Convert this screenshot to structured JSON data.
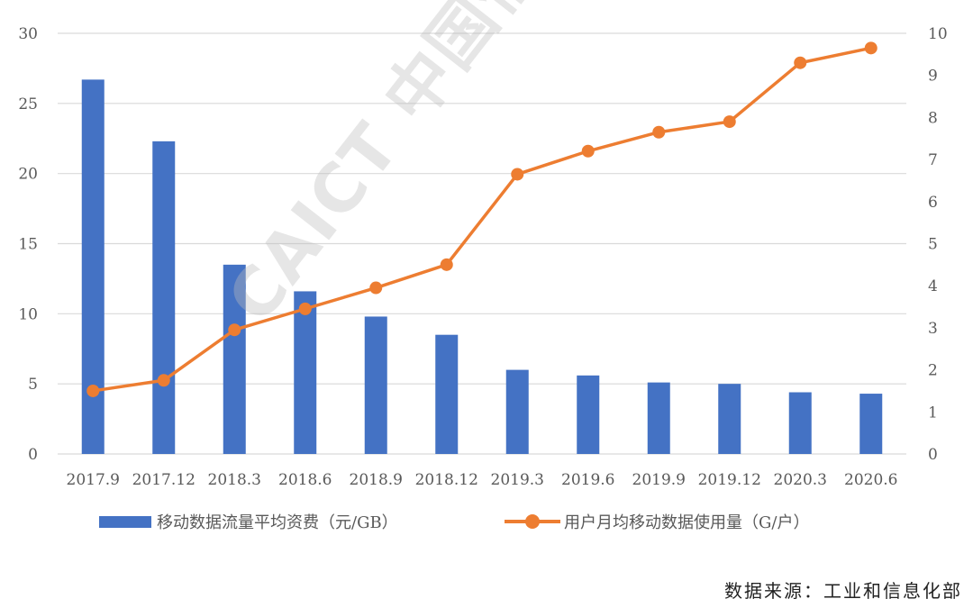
{
  "chart_data": {
    "type": "bar",
    "categories": [
      "2017.9",
      "2017.12",
      "2018.3",
      "2018.6",
      "2018.9",
      "2018.12",
      "2019.3",
      "2019.6",
      "2019.9",
      "2019.12",
      "2020.3",
      "2020.6"
    ],
    "series": [
      {
        "name": "移动数据流量平均资费（元/GB）",
        "type": "bar",
        "axis": "left",
        "values": [
          26.7,
          22.3,
          13.5,
          11.6,
          9.8,
          8.5,
          6.0,
          5.6,
          5.1,
          5.0,
          4.4,
          4.3
        ]
      },
      {
        "name": "用户月均移动数据使用量（G/户）",
        "type": "line",
        "axis": "right",
        "values": [
          1.5,
          1.75,
          2.95,
          3.45,
          3.95,
          4.5,
          6.65,
          7.2,
          7.65,
          7.9,
          9.3,
          9.65
        ]
      }
    ],
    "ylim_left": [
      0,
      30
    ],
    "yticks_left": [
      0,
      5,
      10,
      15,
      20,
      25,
      30
    ],
    "ylim_right": [
      0,
      10
    ],
    "yticks_right": [
      0,
      1,
      2,
      3,
      4,
      5,
      6,
      7,
      8,
      9,
      10
    ],
    "grid": true,
    "legend_position": "bottom"
  },
  "colors": {
    "bar": "#4472C4",
    "line": "#ED7D31",
    "grid": "#D9D9D9"
  },
  "source_note": "数据来源：工业和信息化部",
  "watermark": "CAICT 中国信通院"
}
